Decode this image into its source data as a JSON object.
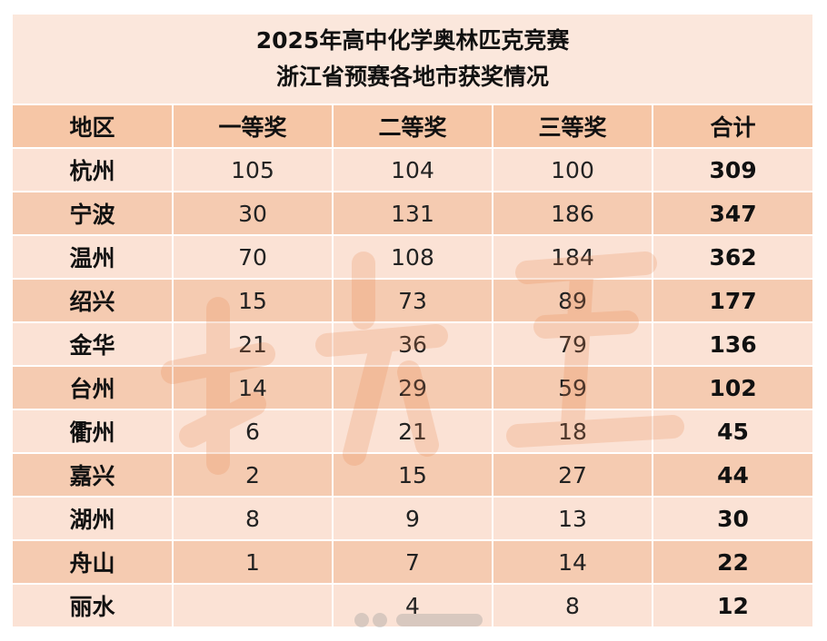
{
  "title_line1": "2025年高中化学奥林匹克竞赛",
  "title_line2": "浙江省预赛各地市获奖情况",
  "headers": [
    "地区",
    "一等奖",
    "二等奖",
    "三等奖",
    "合计"
  ],
  "rows": [
    {
      "region": "杭州",
      "first": "105",
      "second": "104",
      "third": "100",
      "total": "309"
    },
    {
      "region": "宁波",
      "first": "30",
      "second": "131",
      "third": "186",
      "total": "347"
    },
    {
      "region": "温州",
      "first": "70",
      "second": "108",
      "third": "184",
      "total": "362"
    },
    {
      "region": "绍兴",
      "first": "15",
      "second": "73",
      "third": "89",
      "total": "177"
    },
    {
      "region": "金华",
      "first": "21",
      "second": "36",
      "third": "79",
      "total": "136"
    },
    {
      "region": "台州",
      "first": "14",
      "second": "29",
      "third": "59",
      "total": "102"
    },
    {
      "region": "衢州",
      "first": "6",
      "second": "21",
      "third": "18",
      "total": "45"
    },
    {
      "region": "嘉兴",
      "first": "2",
      "second": "15",
      "third": "27",
      "total": "44"
    },
    {
      "region": "湖州",
      "first": "8",
      "second": "9",
      "third": "13",
      "total": "30"
    },
    {
      "region": "舟山",
      "first": "1",
      "second": "7",
      "third": "14",
      "total": "22"
    },
    {
      "region": "丽水",
      "first": "",
      "second": "4",
      "third": "8",
      "total": "12"
    }
  ]
}
